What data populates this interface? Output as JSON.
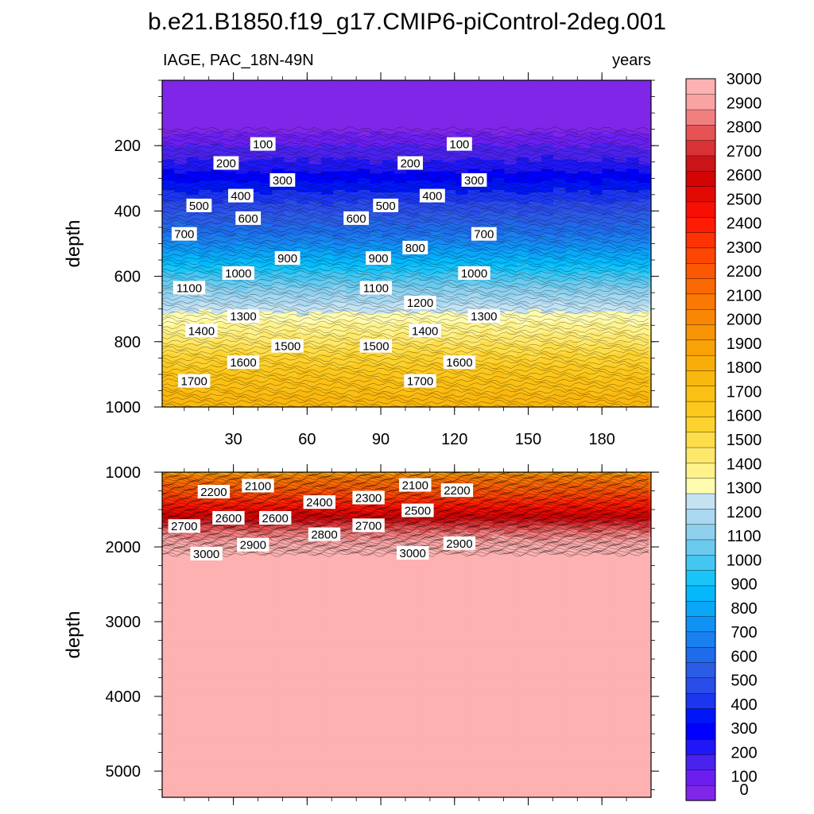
{
  "title": "b.e21.B1850.f19_g17.CMIP6-piControl-2deg.001",
  "chart_data": {
    "type": "heatmap",
    "left_label": "IAGE, PAC_18N-49N",
    "right_label": "years",
    "colorbar": {
      "levels": [
        0,
        100,
        200,
        300,
        400,
        500,
        600,
        700,
        800,
        900,
        1000,
        1100,
        1200,
        1300,
        1400,
        1500,
        1600,
        1700,
        1800,
        1900,
        2000,
        2100,
        2200,
        2300,
        2400,
        2500,
        2600,
        2700,
        2800,
        2900,
        3000
      ],
      "colors": [
        "#7f26e8",
        "#6a1ff0",
        "#4a22ee",
        "#1f17f5",
        "#0000ff",
        "#0016f8",
        "#1c36f0",
        "#2a4ce8",
        "#2a5ce6",
        "#1e6ceb",
        "#1a80f0",
        "#1092f5",
        "#0aa6f8",
        "#05b8fb",
        "#19c4f8",
        "#45c6f2",
        "#6bcaee",
        "#8ed0ee",
        "#a9d8f0",
        "#c3e2f2",
        "#fffcb0",
        "#fff28a",
        "#fee86c",
        "#fedd4a",
        "#fdd22e",
        "#fcc81d",
        "#fbc014",
        "#fab70d",
        "#f9ad08",
        "#f8a205",
        "#f89506",
        "#f98704",
        "#fa7804",
        "#fb6904",
        "#fc5804",
        "#fd4504",
        "#fe3204",
        "#ff1c04",
        "#f70f04",
        "#e40a04",
        "#d20404",
        "#cb1418",
        "#d83236",
        "#e65355",
        "#f27f80",
        "#f9a3a4",
        "#fdb1b1"
      ]
    },
    "top_panel": {
      "ylabel": "depth",
      "ylim": [
        0,
        1000
      ],
      "xlim": [
        1,
        200
      ],
      "yticks": [
        200,
        400,
        600,
        800,
        1000
      ],
      "xticks": [
        30,
        60,
        90,
        120,
        150,
        180
      ],
      "contour_labels": [
        {
          "value": "100",
          "year": 42,
          "depth": 195
        },
        {
          "value": "100",
          "year": 122,
          "depth": 195
        },
        {
          "value": "200",
          "year": 27,
          "depth": 253
        },
        {
          "value": "200",
          "year": 102,
          "depth": 253
        },
        {
          "value": "300",
          "year": 50,
          "depth": 305
        },
        {
          "value": "300",
          "year": 128,
          "depth": 305
        },
        {
          "value": "400",
          "year": 33,
          "depth": 353
        },
        {
          "value": "400",
          "year": 111,
          "depth": 353
        },
        {
          "value": "500",
          "year": 16,
          "depth": 383
        },
        {
          "value": "500",
          "year": 92,
          "depth": 383
        },
        {
          "value": "600",
          "year": 36,
          "depth": 422
        },
        {
          "value": "600",
          "year": 80,
          "depth": 422
        },
        {
          "value": "700",
          "year": 10,
          "depth": 470
        },
        {
          "value": "700",
          "year": 132,
          "depth": 470
        },
        {
          "value": "800",
          "year": 104,
          "depth": 512
        },
        {
          "value": "900",
          "year": 52,
          "depth": 544
        },
        {
          "value": "900",
          "year": 89,
          "depth": 544
        },
        {
          "value": "1000",
          "year": 32,
          "depth": 590
        },
        {
          "value": "1000",
          "year": 128,
          "depth": 590
        },
        {
          "value": "1100",
          "year": 12,
          "depth": 635
        },
        {
          "value": "1100",
          "year": 88,
          "depth": 635
        },
        {
          "value": "1200",
          "year": 106,
          "depth": 680
        },
        {
          "value": "1300",
          "year": 34,
          "depth": 722
        },
        {
          "value": "1300",
          "year": 132,
          "depth": 722
        },
        {
          "value": "1400",
          "year": 17,
          "depth": 766
        },
        {
          "value": "1400",
          "year": 108,
          "depth": 766
        },
        {
          "value": "1500",
          "year": 52,
          "depth": 813
        },
        {
          "value": "1500",
          "year": 88,
          "depth": 813
        },
        {
          "value": "1600",
          "year": 34,
          "depth": 863
        },
        {
          "value": "1600",
          "year": 122,
          "depth": 863
        },
        {
          "value": "1700",
          "year": 14,
          "depth": 920
        },
        {
          "value": "1700",
          "year": 106,
          "depth": 920
        }
      ]
    },
    "bottom_panel": {
      "ylabel": "depth",
      "ylim": [
        1000,
        5350
      ],
      "xlim": [
        1,
        200
      ],
      "yticks": [
        1000,
        2000,
        3000,
        4000,
        5000
      ],
      "contour_labels": [
        {
          "value": "2100",
          "year": 40,
          "depth": 1180
        },
        {
          "value": "2100",
          "year": 104,
          "depth": 1170
        },
        {
          "value": "2200",
          "year": 22,
          "depth": 1260
        },
        {
          "value": "2200",
          "year": 121,
          "depth": 1240
        },
        {
          "value": "2300",
          "year": 85,
          "depth": 1340
        },
        {
          "value": "2400",
          "year": 65,
          "depth": 1400
        },
        {
          "value": "2500",
          "year": 105,
          "depth": 1510
        },
        {
          "value": "2600",
          "year": 28,
          "depth": 1610
        },
        {
          "value": "2600",
          "year": 47,
          "depth": 1610
        },
        {
          "value": "2700",
          "year": 10,
          "depth": 1720
        },
        {
          "value": "2700",
          "year": 85,
          "depth": 1710
        },
        {
          "value": "2800",
          "year": 67,
          "depth": 1830
        },
        {
          "value": "2900",
          "year": 38,
          "depth": 1970
        },
        {
          "value": "2900",
          "year": 122,
          "depth": 1950
        },
        {
          "value": "3000",
          "year": 19,
          "depth": 2090
        },
        {
          "value": "3000",
          "year": 103,
          "depth": 2080
        }
      ]
    }
  }
}
